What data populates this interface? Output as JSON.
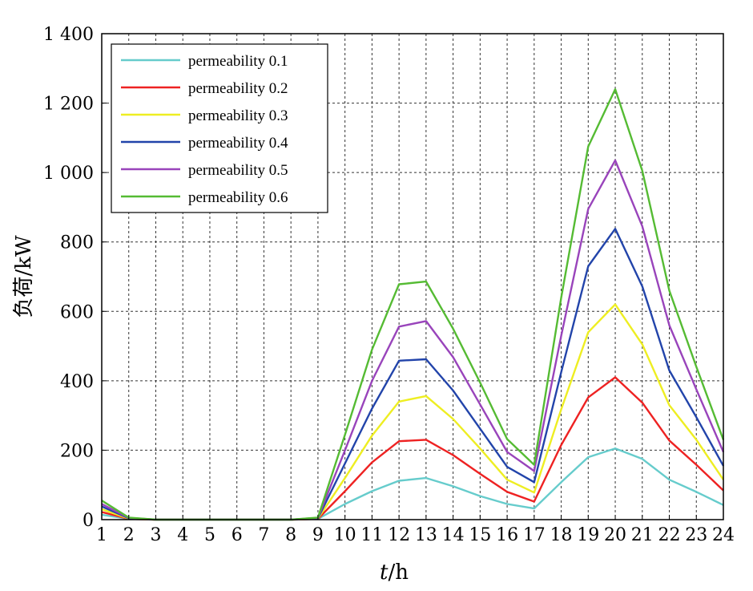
{
  "chart_data": {
    "type": "line",
    "title": "",
    "xlabel_italic": "t",
    "xlabel_rest": "/h",
    "ylabel": "负荷/kW",
    "x": [
      1,
      2,
      3,
      4,
      5,
      6,
      7,
      8,
      9,
      10,
      11,
      12,
      13,
      14,
      15,
      16,
      17,
      18,
      19,
      20,
      21,
      22,
      23,
      24
    ],
    "xlim": [
      1,
      24
    ],
    "ylim": [
      0,
      1400
    ],
    "yticks": [
      0,
      200,
      400,
      600,
      800,
      1000,
      1200,
      1400
    ],
    "ytick_labels": [
      "0",
      "200",
      "400",
      "600",
      "800",
      "1 000",
      "1 200",
      "1 400"
    ],
    "grid": true,
    "legend_position": "top-left",
    "series": [
      {
        "name": "permeability 0.1",
        "color": "#66cccc",
        "values": [
          14,
          2,
          0,
          0,
          0,
          0,
          0,
          0,
          2,
          45,
          82,
          112,
          120,
          96,
          68,
          45,
          32,
          108,
          180,
          205,
          175,
          115,
          80,
          42
        ]
      },
      {
        "name": "permeability 0.2",
        "color": "#ee2222",
        "values": [
          22,
          2,
          0,
          0,
          0,
          0,
          0,
          0,
          2,
          82,
          165,
          226,
          230,
          186,
          132,
          80,
          52,
          215,
          352,
          410,
          337,
          228,
          158,
          84
        ]
      },
      {
        "name": "permeability 0.3",
        "color": "#eeee22",
        "values": [
          30,
          3,
          0,
          0,
          0,
          0,
          0,
          0,
          3,
          120,
          242,
          340,
          356,
          290,
          205,
          115,
          78,
          318,
          540,
          620,
          505,
          330,
          230,
          115
        ]
      },
      {
        "name": "permeability 0.4",
        "color": "#2244aa",
        "values": [
          38,
          4,
          0,
          0,
          0,
          0,
          0,
          0,
          4,
          162,
          320,
          458,
          462,
          372,
          262,
          152,
          108,
          425,
          730,
          838,
          672,
          430,
          295,
          155
        ]
      },
      {
        "name": "permeability 0.5",
        "color": "#9944bb",
        "values": [
          45,
          5,
          0,
          0,
          0,
          0,
          0,
          0,
          5,
          200,
          400,
          556,
          572,
          468,
          332,
          195,
          140,
          530,
          895,
          1035,
          845,
          560,
          375,
          195
        ]
      },
      {
        "name": "permeability 0.6",
        "color": "#55bb33",
        "values": [
          55,
          6,
          0,
          0,
          0,
          0,
          0,
          0,
          6,
          245,
          490,
          678,
          686,
          550,
          395,
          232,
          158,
          640,
          1075,
          1240,
          1005,
          660,
          440,
          230
        ]
      }
    ]
  }
}
